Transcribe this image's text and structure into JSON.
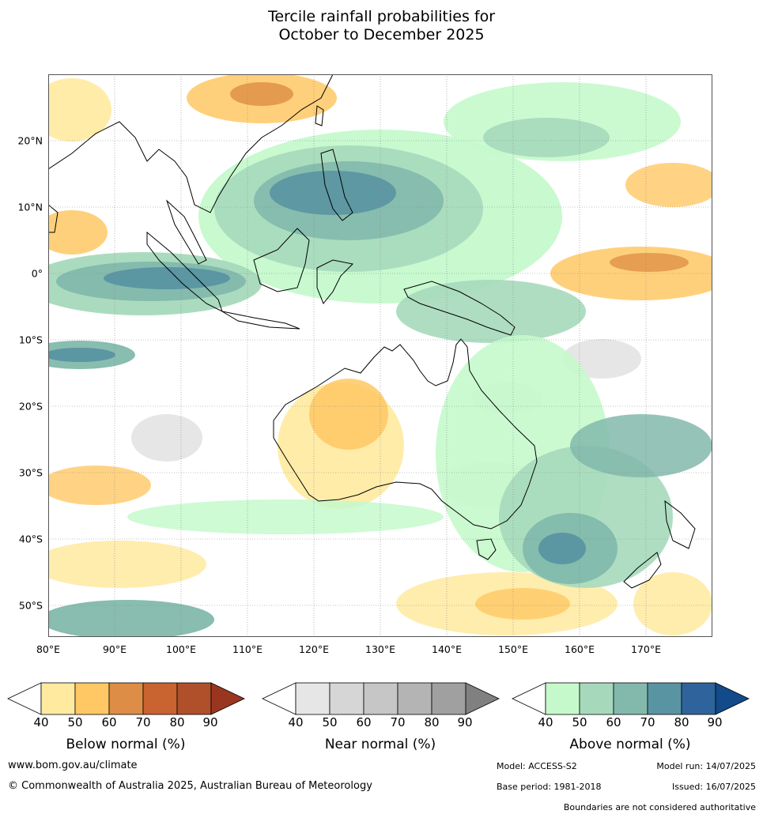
{
  "title_line1": "Tercile rainfall probabilities for",
  "title_line2": "October to December 2025",
  "lat_labels": [
    "20°N",
    "10°N",
    "0°",
    "10°S",
    "20°S",
    "30°S",
    "40°S",
    "50°S"
  ],
  "lon_labels": [
    "80°E",
    "90°E",
    "100°E",
    "110°E",
    "120°E",
    "130°E",
    "140°E",
    "150°E",
    "160°E",
    "170°E"
  ],
  "colorbars": [
    {
      "name": "below",
      "title": "Below normal (%)",
      "ticks": [
        "40",
        "50",
        "60",
        "70",
        "80",
        "90"
      ],
      "colors": [
        "#ffffff",
        "#ffeaa0",
        "#ffc864",
        "#dd8d45",
        "#c9632f",
        "#b0502a",
        "#9a3620"
      ]
    },
    {
      "name": "near",
      "title": "Near normal (%)",
      "ticks": [
        "40",
        "50",
        "60",
        "70",
        "80",
        "90"
      ],
      "colors": [
        "#ffffff",
        "#e6e6e6",
        "#d6d6d6",
        "#c6c6c6",
        "#b4b4b4",
        "#a0a0a0",
        "#808080"
      ]
    },
    {
      "name": "above",
      "title": "Above normal (%)",
      "ticks": [
        "40",
        "50",
        "60",
        "70",
        "80",
        "90"
      ],
      "colors": [
        "#ffffff",
        "#c5f9cc",
        "#a6d9bb",
        "#82b9ac",
        "#5994a2",
        "#2f639b",
        "#124a8a"
      ]
    }
  ],
  "footer": {
    "website": "www.bom.gov.au/climate",
    "copyright": "© Commonwealth of Australia 2025, Australian Bureau of Meteorology",
    "model": "Model: ACCESS-S2",
    "model_run": "Model run: 14/07/2025",
    "base_period": "Base period: 1981-2018",
    "issued": "Issued: 16/07/2025",
    "disclaimer": "Boundaries are not considered authoritative"
  }
}
